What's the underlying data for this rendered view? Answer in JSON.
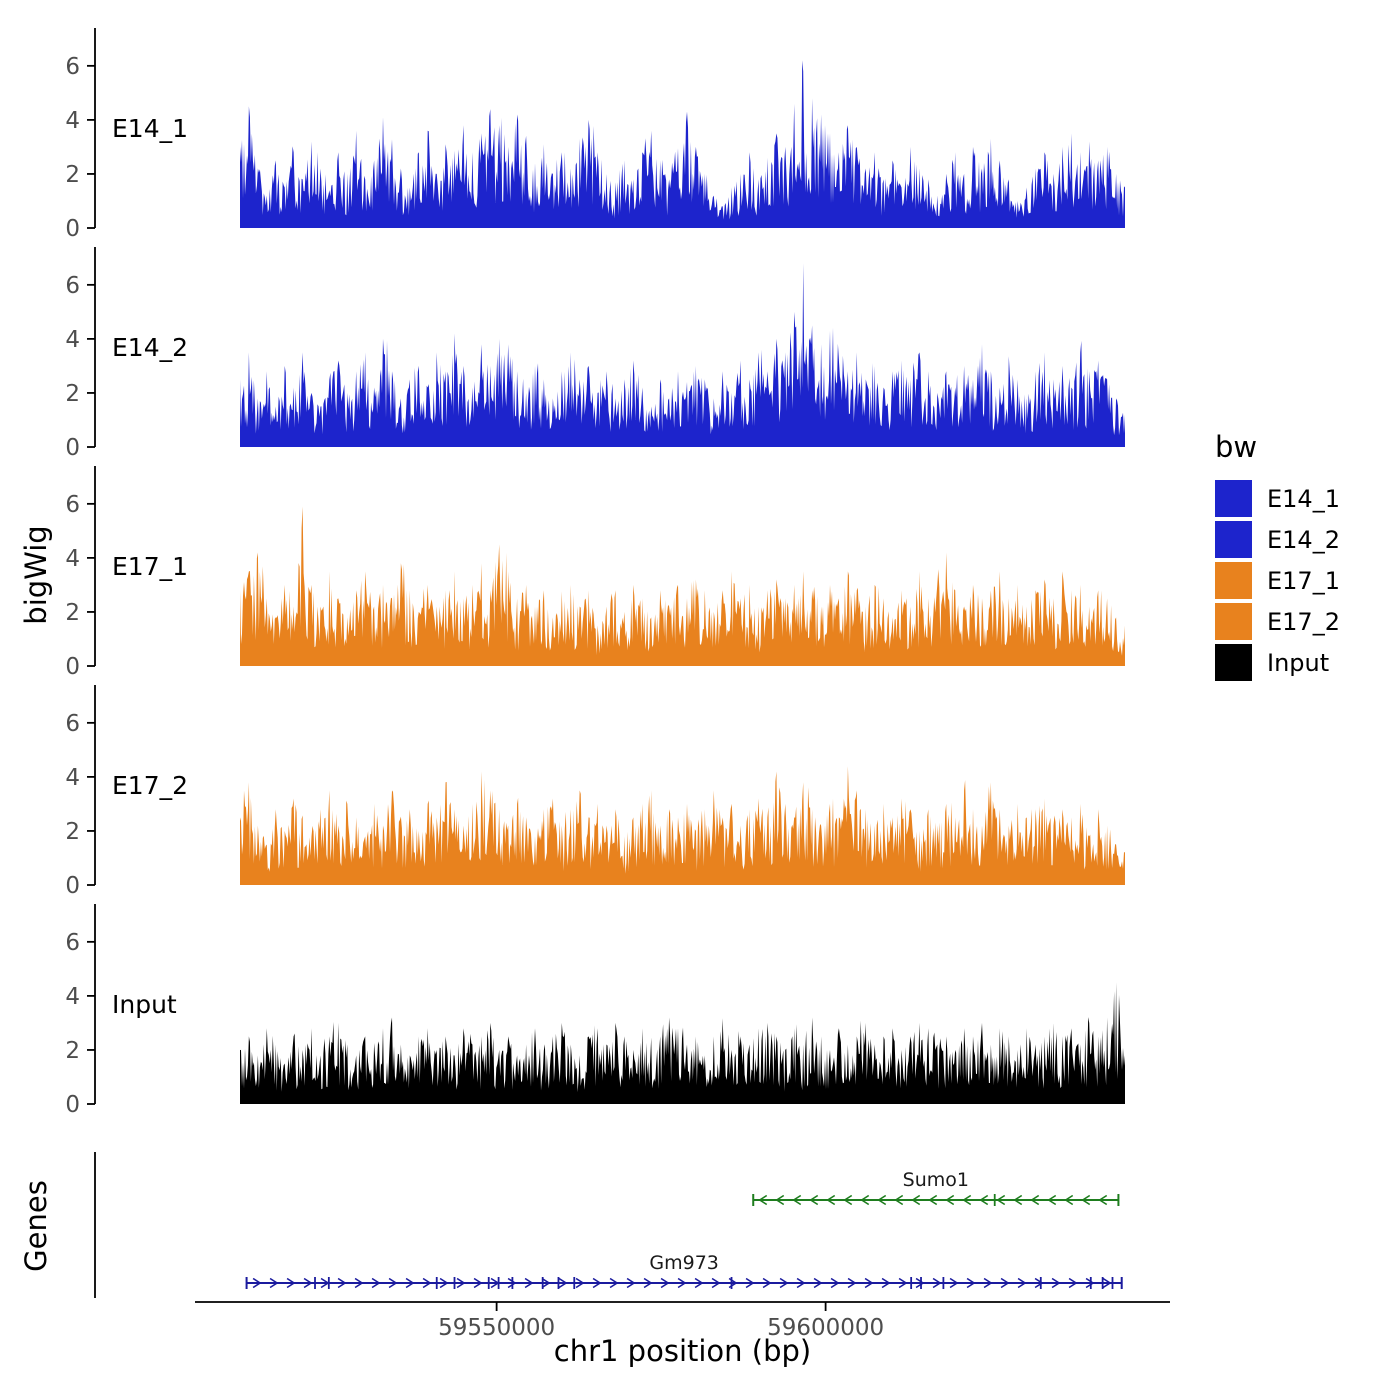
{
  "axes": {
    "y_label": "bigWig",
    "genes_label": "Genes",
    "x_label": "chr1 position (bp)",
    "x_ticks": [
      {
        "bp": 59550000,
        "label": "59550000"
      },
      {
        "bp": 59600000,
        "label": "59600000"
      }
    ],
    "x_range_bp": [
      59511000,
      59645500
    ],
    "y_ticks": [
      0,
      2,
      4,
      6
    ],
    "y_max": 7.4
  },
  "colors": {
    "axis_line": "#000000",
    "axis_text": "#4d4d4d",
    "track_label": "#000000",
    "gene_label": "#1a1a1a"
  },
  "legend": {
    "title": "bw",
    "items": [
      {
        "label": "E14_1",
        "color": "#1d24cc"
      },
      {
        "label": "E14_2",
        "color": "#1d24cc"
      },
      {
        "label": "E17_1",
        "color": "#e8821e"
      },
      {
        "label": "E17_2",
        "color": "#e8821e"
      },
      {
        "label": "Input",
        "color": "#000000"
      }
    ]
  },
  "chart_data": {
    "type": "area",
    "title": "",
    "xlabel": "chr1 position (bp)",
    "ylabel": "bigWig",
    "x_range_bp": [
      59511000,
      59645500
    ],
    "y_ticks_per_track": [
      0,
      2,
      4,
      6
    ],
    "sample_units": "tenths_of_bigWig_value",
    "tracks": [
      {
        "name": "E14_1",
        "color": "#1d24cc",
        "samples": [
          30,
          45,
          22,
          12,
          25,
          15,
          28,
          18,
          32,
          22,
          14,
          28,
          20,
          36,
          18,
          25,
          41,
          30,
          22,
          15,
          28,
          36,
          20,
          31,
          25,
          38,
          28,
          35,
          44,
          38,
          30,
          42,
          34,
          24,
          31,
          20,
          28,
          22,
          33,
          40,
          28,
          20,
          15,
          25,
          18,
          28,
          36,
          25,
          18,
          28,
          43,
          30,
          20,
          12,
          8,
          15,
          20,
          28,
          18,
          26,
          35,
          30,
          46,
          58,
          48,
          42,
          35,
          28,
          38,
          30,
          22,
          28,
          18,
          25,
          15,
          30,
          22,
          18,
          12,
          20,
          28,
          20,
          30,
          22,
          33,
          25,
          18,
          10,
          15,
          22,
          28,
          20,
          30,
          35,
          28,
          32,
          25,
          30,
          20,
          15
        ]
      },
      {
        "name": "E14_2",
        "color": "#1d24cc",
        "samples": [
          25,
          35,
          18,
          28,
          15,
          30,
          22,
          35,
          20,
          15,
          25,
          32,
          20,
          28,
          35,
          22,
          40,
          28,
          18,
          25,
          30,
          22,
          35,
          28,
          42,
          30,
          22,
          38,
          30,
          40,
          38,
          28,
          20,
          30,
          25,
          18,
          28,
          35,
          25,
          30,
          20,
          28,
          18,
          25,
          32,
          22,
          15,
          25,
          18,
          28,
          22,
          30,
          25,
          18,
          28,
          20,
          32,
          25,
          35,
          28,
          40,
          35,
          50,
          68,
          45,
          38,
          43,
          32,
          28,
          35,
          25,
          30,
          22,
          28,
          32,
          25,
          35,
          28,
          20,
          28,
          22,
          30,
          25,
          38,
          28,
          22,
          30,
          25,
          18,
          28,
          35,
          25,
          30,
          22,
          35,
          28,
          32,
          25,
          18,
          12
        ]
      },
      {
        "name": "E17_1",
        "color": "#e8821e",
        "samples": [
          28,
          35,
          42,
          25,
          18,
          30,
          22,
          59,
          30,
          22,
          35,
          25,
          18,
          28,
          35,
          22,
          30,
          25,
          38,
          28,
          20,
          30,
          22,
          28,
          35,
          25,
          30,
          38,
          28,
          45,
          35,
          25,
          30,
          22,
          28,
          18,
          25,
          30,
          22,
          28,
          15,
          22,
          28,
          20,
          30,
          25,
          18,
          28,
          22,
          30,
          25,
          32,
          28,
          20,
          28,
          35,
          25,
          30,
          22,
          28,
          32,
          25,
          30,
          35,
          28,
          22,
          30,
          25,
          35,
          28,
          22,
          30,
          25,
          18,
          28,
          22,
          32,
          25,
          30,
          42,
          28,
          22,
          30,
          25,
          28,
          35,
          25,
          30,
          22,
          28,
          32,
          25,
          35,
          28,
          30,
          22,
          28,
          25,
          18,
          15
        ]
      },
      {
        "name": "E17_2",
        "color": "#e8821e",
        "samples": [
          25,
          38,
          22,
          15,
          28,
          20,
          32,
          25,
          18,
          28,
          35,
          22,
          30,
          25,
          18,
          30,
          22,
          35,
          25,
          28,
          20,
          30,
          25,
          38,
          28,
          22,
          30,
          42,
          35,
          28,
          22,
          30,
          25,
          18,
          28,
          32,
          22,
          28,
          35,
          25,
          30,
          22,
          28,
          18,
          25,
          30,
          35,
          22,
          28,
          25,
          30,
          20,
          28,
          35,
          25,
          30,
          22,
          28,
          32,
          25,
          42,
          30,
          25,
          38,
          28,
          22,
          30,
          25,
          44,
          35,
          28,
          22,
          30,
          25,
          32,
          28,
          20,
          28,
          22,
          30,
          25,
          35,
          28,
          22,
          38,
          28,
          22,
          30,
          25,
          28,
          32,
          22,
          28,
          25,
          30,
          18,
          28,
          22,
          15,
          12
        ]
      },
      {
        "name": "Input",
        "color": "#000000",
        "samples": [
          20,
          25,
          18,
          28,
          22,
          15,
          25,
          20,
          28,
          18,
          25,
          30,
          22,
          18,
          25,
          20,
          28,
          32,
          22,
          18,
          25,
          28,
          20,
          25,
          18,
          28,
          22,
          25,
          30,
          20,
          25,
          18,
          22,
          28,
          20,
          25,
          30,
          22,
          18,
          25,
          28,
          22,
          30,
          25,
          20,
          28,
          22,
          25,
          32,
          28,
          22,
          25,
          18,
          25,
          28,
          20,
          25,
          22,
          28,
          30,
          25,
          20,
          28,
          22,
          32,
          25,
          20,
          28,
          22,
          25,
          30,
          22,
          25,
          28,
          20,
          25,
          30,
          28,
          22,
          25,
          20,
          28,
          25,
          30,
          22,
          28,
          25,
          20,
          28,
          22,
          25,
          30,
          25,
          28,
          22,
          30,
          25,
          32,
          45,
          18
        ]
      }
    ],
    "genes": [
      {
        "name": "Sumo1",
        "start": 59589000,
        "end": 59644500,
        "strand": "-",
        "color": "#1e7d1e",
        "exon_ticks": [
          59625700
        ]
      },
      {
        "name": "Gm973",
        "start": 59512000,
        "end": 59645000,
        "strand": "+",
        "color": "#1b1b9e",
        "exon_ticks": [
          59522400,
          59524500,
          59540900,
          59543600,
          59548800,
          59550300,
          59552400,
          59557000,
          59559400,
          59561800,
          59585700,
          59613000,
          59614500,
          59617900,
          59632700,
          59640300,
          59642100,
          59643600
        ]
      }
    ]
  }
}
